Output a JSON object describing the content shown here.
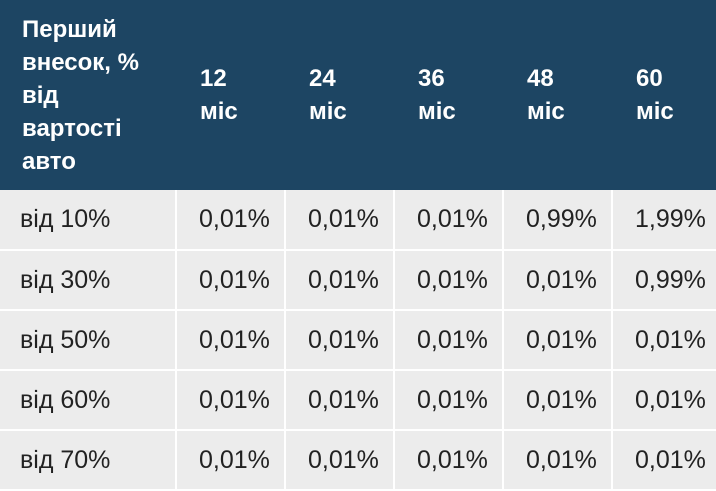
{
  "table": {
    "header": [
      "Перший внесок, % від вартості авто",
      "12 міс",
      "24 міс",
      "36 міс",
      "48 міс",
      "60 міс"
    ],
    "rows": [
      [
        "від 10%",
        "0,01%",
        "0,01%",
        "0,01%",
        "0,99%",
        "1,99%"
      ],
      [
        "від 30%",
        "0,01%",
        "0,01%",
        "0,01%",
        "0,01%",
        "0,99%"
      ],
      [
        "від 50%",
        "0,01%",
        "0,01%",
        "0,01%",
        "0,01%",
        "0,01%"
      ],
      [
        "від 60%",
        "0,01%",
        "0,01%",
        "0,01%",
        "0,01%",
        "0,01%"
      ],
      [
        "від 70%",
        "0,01%",
        "0,01%",
        "0,01%",
        "0,01%",
        "0,01%"
      ]
    ]
  }
}
